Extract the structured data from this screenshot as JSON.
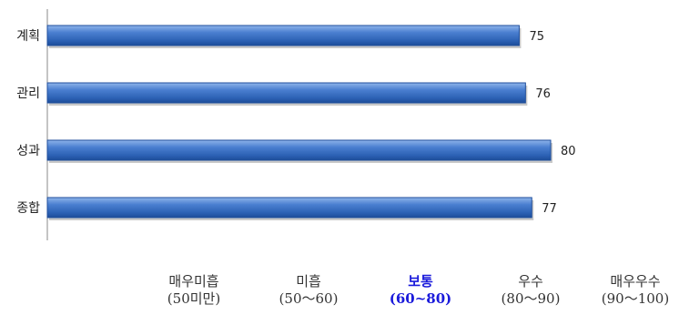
{
  "chart_data": {
    "type": "bar",
    "orientation": "horizontal",
    "categories": [
      "계획",
      "관리",
      "성과",
      "종합"
    ],
    "values": [
      75,
      76,
      80,
      77
    ],
    "data_labels": [
      "75",
      "76",
      "80",
      "77"
    ],
    "xlim": [
      0,
      80
    ],
    "grid": false,
    "bar_color": "#3a6fc4",
    "bar_edge_color": "#1f4e9c"
  },
  "scale_legend": [
    {
      "name": "매우미흡",
      "range": "(50미만)"
    },
    {
      "name": "미흡",
      "range": "(50～60)"
    },
    {
      "name": "보통",
      "range": "(60~80)",
      "highlight": true
    },
    {
      "name": "우수",
      "range": "(80～90)"
    },
    {
      "name": "매우우수",
      "range": "(90～100)"
    }
  ],
  "colors": {
    "highlight": "#1a1adb",
    "text": "#333333",
    "axis": "#888888"
  }
}
